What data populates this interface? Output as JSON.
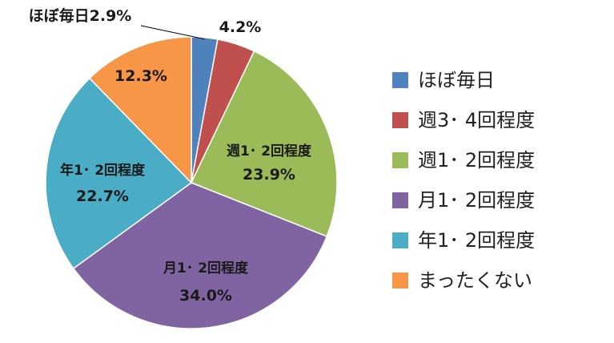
{
  "chart_data": {
    "type": "pie",
    "title": "",
    "categories": [
      "ほぼ毎日",
      "週3･4回程度",
      "週1･2回程度",
      "月1･2回程度",
      "年1･2回程度",
      "まったくない"
    ],
    "values": [
      2.9,
      4.2,
      23.9,
      34.0,
      22.7,
      12.3
    ],
    "colors": [
      "#4F81BD",
      "#C0504D",
      "#9BBB59",
      "#8064A2",
      "#4BACC6",
      "#F79646"
    ],
    "data_labels": [
      {
        "category": "ほぼ毎日",
        "value": "2.9%"
      },
      {
        "category": "",
        "value": "4.2%"
      },
      {
        "category": "週1･ 2回程度",
        "value": "23.9%"
      },
      {
        "category": "月1･ 2回程度",
        "value": "34.0%"
      },
      {
        "category": "年1･ 2回程度",
        "value": "22.7%"
      },
      {
        "category": "",
        "value": "12.3%"
      }
    ],
    "legend": {
      "position": "right",
      "entries": [
        "ほぼ毎日",
        "週3･ 4回程度",
        "週1･ 2回程度",
        "月1･ 2回程度",
        "年1･ 2回程度",
        "まったくない"
      ]
    }
  }
}
